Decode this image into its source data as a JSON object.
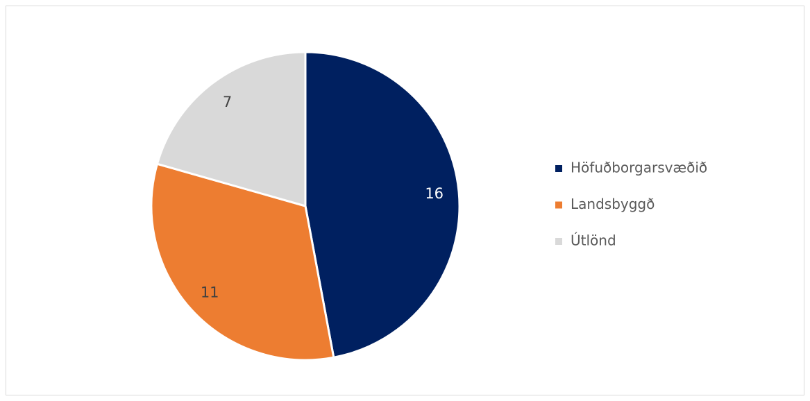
{
  "chart_data": {
    "type": "pie",
    "categories": [
      "Höfuðborgarsvæðið",
      "Landsbyggð",
      "Útlönd"
    ],
    "values": [
      16,
      11,
      7
    ],
    "colors": [
      "#002060",
      "#ED7D31",
      "#D9D9D9"
    ],
    "label_colors": [
      "#ffffff",
      "#404040",
      "#404040"
    ],
    "legend": "right"
  }
}
